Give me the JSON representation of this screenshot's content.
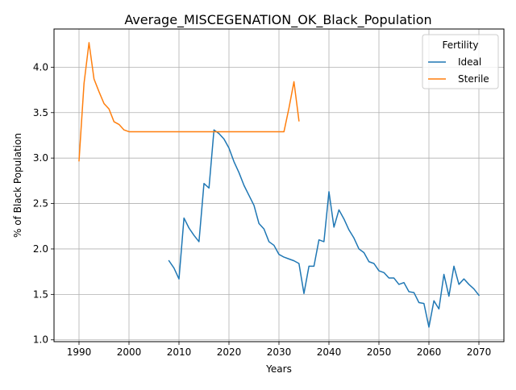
{
  "chart_data": {
    "type": "line",
    "title": "Average_MISCEGENATION_OK_Black_Population",
    "xlabel": "Years",
    "ylabel": "% of Black Population",
    "xlim": [
      1985,
      2075
    ],
    "ylim": [
      0.98,
      4.42
    ],
    "xticks": [
      1990,
      2000,
      2010,
      2020,
      2030,
      2040,
      2050,
      2060,
      2070
    ],
    "yticks": [
      1.0,
      1.5,
      2.0,
      2.5,
      3.0,
      3.5,
      4.0
    ],
    "ytick_labels": [
      "1.0",
      "1.5",
      "2.0",
      "2.5",
      "3.0",
      "3.5",
      "4.0"
    ],
    "grid": true,
    "legend": {
      "title": "Fertility",
      "placement": "top-right"
    },
    "series": [
      {
        "name": "Ideal",
        "color": "#1f77b4",
        "x": [
          2008,
          2009,
          2010,
          2011,
          2012,
          2013,
          2014,
          2015,
          2016,
          2017,
          2018,
          2019,
          2020,
          2021,
          2022,
          2023,
          2024,
          2025,
          2026,
          2027,
          2028,
          2029,
          2030,
          2031,
          2032,
          2033,
          2034,
          2035,
          2036,
          2037,
          2038,
          2039,
          2040,
          2041,
          2042,
          2043,
          2044,
          2045,
          2046,
          2047,
          2048,
          2049,
          2050,
          2051,
          2052,
          2053,
          2054,
          2055,
          2056,
          2057,
          2058,
          2059,
          2060,
          2061,
          2062,
          2063,
          2064,
          2065,
          2066,
          2067,
          2068,
          2069,
          2070
        ],
        "y": [
          1.87,
          1.79,
          1.67,
          2.34,
          2.23,
          2.15,
          2.08,
          2.72,
          2.67,
          3.31,
          3.27,
          3.21,
          3.11,
          2.96,
          2.84,
          2.7,
          2.59,
          2.48,
          2.28,
          2.22,
          2.08,
          2.04,
          1.94,
          1.91,
          1.89,
          1.87,
          1.84,
          1.51,
          1.81,
          1.81,
          2.1,
          2.08,
          2.63,
          2.24,
          2.43,
          2.33,
          2.21,
          2.12,
          2.0,
          1.96,
          1.86,
          1.84,
          1.76,
          1.74,
          1.68,
          1.68,
          1.61,
          1.63,
          1.53,
          1.52,
          1.41,
          1.4,
          1.14,
          1.43,
          1.34,
          1.72,
          1.48,
          1.81,
          1.61,
          1.67,
          1.61,
          1.56,
          1.49
        ]
      },
      {
        "name": "Sterile",
        "color": "#ff7f0e",
        "x": [
          1990,
          1991,
          1992,
          1993,
          1994,
          1995,
          1996,
          1997,
          1998,
          1999,
          2000,
          2001,
          2002,
          2003,
          2004,
          2005,
          2006,
          2007,
          2008,
          2009,
          2010,
          2011,
          2012,
          2013,
          2014,
          2015,
          2016,
          2017,
          2018,
          2019,
          2020,
          2021,
          2022,
          2023,
          2024,
          2025,
          2026,
          2027,
          2028,
          2029,
          2030,
          2031,
          2032,
          2033,
          2034
        ],
        "y": [
          2.97,
          3.82,
          4.27,
          3.87,
          3.73,
          3.6,
          3.54,
          3.4,
          3.37,
          3.31,
          3.29,
          3.29,
          3.29,
          3.29,
          3.29,
          3.29,
          3.29,
          3.29,
          3.29,
          3.29,
          3.29,
          3.29,
          3.29,
          3.29,
          3.29,
          3.29,
          3.29,
          3.29,
          3.29,
          3.29,
          3.29,
          3.29,
          3.29,
          3.29,
          3.29,
          3.29,
          3.29,
          3.29,
          3.29,
          3.29,
          3.29,
          3.29,
          3.55,
          3.84,
          3.41
        ]
      }
    ]
  }
}
